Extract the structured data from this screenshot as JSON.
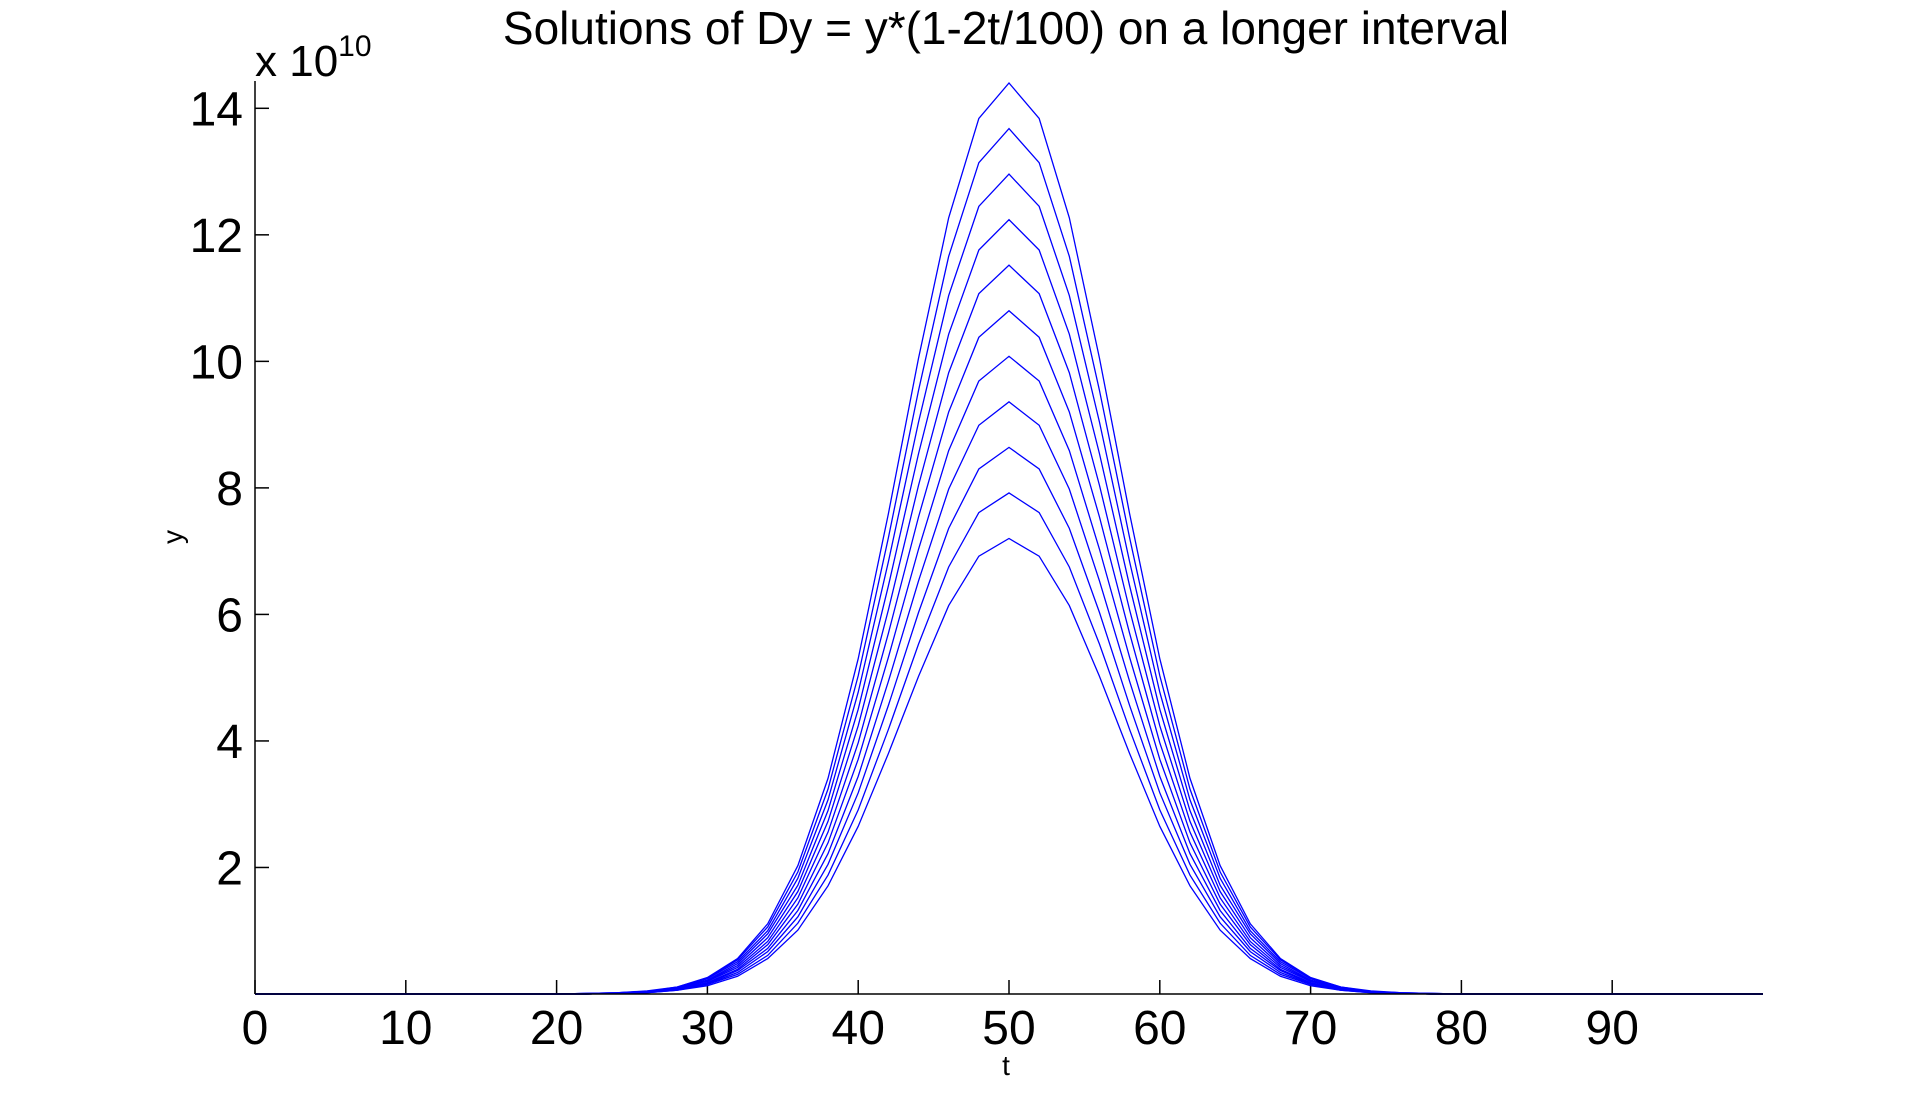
{
  "chart_data": {
    "type": "line",
    "title": "Solutions of Dy = y*(1-2t/100) on a longer interval",
    "x_label": "t",
    "y_label": "y",
    "y_multiplier": "x 10",
    "y_multiplier_exponent": "10",
    "xlim": [
      0,
      100
    ],
    "ylim": [
      0,
      14.4
    ],
    "xticks": [
      0,
      10,
      20,
      30,
      40,
      50,
      60,
      70,
      80,
      90
    ],
    "yticks": [
      2,
      4,
      6,
      8,
      10,
      12,
      14
    ],
    "grid": false,
    "x": [
      0,
      2,
      4,
      6,
      8,
      10,
      12,
      14,
      16,
      18,
      20,
      22,
      24,
      26,
      28,
      30,
      32,
      34,
      36,
      38,
      40,
      42,
      44,
      46,
      48,
      50,
      52,
      54,
      56,
      58,
      60,
      62,
      64,
      66,
      68,
      70,
      72,
      74,
      76,
      78,
      80,
      82,
      84,
      86,
      88,
      90,
      92,
      94,
      96,
      98,
      100
    ],
    "series": [
      {
        "color": "#0000ff",
        "values": [
          0,
          0,
          0,
          0,
          0,
          0,
          0,
          0,
          0,
          0,
          0,
          0,
          0.01,
          0.02,
          0.06,
          0.13,
          0.28,
          0.56,
          1.01,
          1.71,
          2.65,
          3.8,
          5.02,
          6.14,
          6.92,
          7.2,
          6.92,
          6.14,
          5.02,
          3.8,
          2.65,
          1.71,
          1.01,
          0.56,
          0.28,
          0.13,
          0.06,
          0.02,
          0.01,
          0,
          0,
          0,
          0,
          0,
          0,
          0,
          0,
          0,
          0,
          0,
          0
        ]
      },
      {
        "color": "#0000ff",
        "values": [
          0,
          0,
          0,
          0,
          0,
          0,
          0,
          0,
          0,
          0,
          0,
          0,
          0.01,
          0.02,
          0.06,
          0.15,
          0.31,
          0.61,
          1.12,
          1.88,
          2.91,
          4.18,
          5.53,
          6.75,
          7.61,
          7.92,
          7.61,
          6.75,
          5.53,
          4.18,
          2.91,
          1.88,
          1.12,
          0.61,
          0.31,
          0.15,
          0.06,
          0.02,
          0.01,
          0,
          0,
          0,
          0,
          0,
          0,
          0,
          0,
          0,
          0,
          0,
          0
        ]
      },
      {
        "color": "#0000ff",
        "values": [
          0,
          0,
          0,
          0,
          0,
          0,
          0,
          0,
          0,
          0,
          0,
          0,
          0.01,
          0.03,
          0.07,
          0.16,
          0.34,
          0.67,
          1.22,
          2.05,
          3.18,
          4.56,
          6.03,
          7.36,
          8.3,
          8.64,
          8.3,
          7.36,
          6.03,
          4.56,
          3.18,
          2.05,
          1.22,
          0.67,
          0.34,
          0.16,
          0.07,
          0.03,
          0.01,
          0,
          0,
          0,
          0,
          0,
          0,
          0,
          0,
          0,
          0,
          0,
          0
        ]
      },
      {
        "color": "#0000ff",
        "values": [
          0,
          0,
          0,
          0,
          0,
          0,
          0,
          0,
          0,
          0,
          0,
          0,
          0.01,
          0.03,
          0.07,
          0.17,
          0.37,
          0.72,
          1.32,
          2.22,
          3.44,
          4.94,
          6.53,
          7.98,
          8.99,
          9.36,
          8.99,
          7.98,
          6.53,
          4.94,
          3.44,
          2.22,
          1.32,
          0.72,
          0.37,
          0.17,
          0.07,
          0.03,
          0.01,
          0,
          0,
          0,
          0,
          0,
          0,
          0,
          0,
          0,
          0,
          0,
          0
        ]
      },
      {
        "color": "#0000ff",
        "values": [
          0,
          0,
          0,
          0,
          0,
          0,
          0,
          0,
          0,
          0,
          0,
          0,
          0.01,
          0.03,
          0.08,
          0.18,
          0.39,
          0.78,
          1.42,
          2.39,
          3.71,
          5.32,
          7.03,
          8.59,
          9.69,
          10.08,
          9.69,
          8.59,
          7.03,
          5.32,
          3.71,
          2.39,
          1.42,
          0.78,
          0.39,
          0.18,
          0.08,
          0.03,
          0.01,
          0,
          0,
          0,
          0,
          0,
          0,
          0,
          0,
          0,
          0,
          0,
          0
        ]
      },
      {
        "color": "#0000ff",
        "values": [
          0,
          0,
          0,
          0,
          0,
          0,
          0,
          0,
          0,
          0,
          0,
          0,
          0.01,
          0.03,
          0.09,
          0.2,
          0.42,
          0.83,
          1.52,
          2.56,
          3.97,
          5.7,
          7.54,
          9.2,
          10.38,
          10.8,
          10.38,
          9.2,
          7.54,
          5.7,
          3.97,
          2.56,
          1.52,
          0.83,
          0.42,
          0.2,
          0.09,
          0.03,
          0.01,
          0,
          0,
          0,
          0,
          0,
          0,
          0,
          0,
          0,
          0,
          0,
          0
        ]
      },
      {
        "color": "#0000ff",
        "values": [
          0,
          0,
          0,
          0,
          0,
          0,
          0,
          0,
          0,
          0,
          0,
          0,
          0.01,
          0.04,
          0.09,
          0.21,
          0.45,
          0.89,
          1.62,
          2.73,
          4.24,
          6.07,
          8.04,
          9.82,
          11.07,
          11.52,
          11.07,
          9.82,
          8.04,
          6.07,
          4.24,
          2.73,
          1.62,
          0.89,
          0.45,
          0.21,
          0.09,
          0.04,
          0.01,
          0,
          0,
          0,
          0,
          0,
          0,
          0,
          0,
          0,
          0,
          0,
          0
        ]
      },
      {
        "color": "#0000ff",
        "values": [
          0,
          0,
          0,
          0,
          0,
          0,
          0,
          0,
          0,
          0,
          0,
          0,
          0.01,
          0.04,
          0.1,
          0.22,
          0.48,
          0.95,
          1.72,
          2.9,
          4.5,
          6.45,
          8.54,
          10.43,
          11.76,
          12.24,
          11.76,
          10.43,
          8.54,
          6.45,
          4.5,
          2.9,
          1.72,
          0.95,
          0.48,
          0.22,
          0.1,
          0.04,
          0.01,
          0,
          0,
          0,
          0,
          0,
          0,
          0,
          0,
          0,
          0,
          0,
          0
        ]
      },
      {
        "color": "#0000ff",
        "values": [
          0,
          0,
          0,
          0,
          0,
          0,
          0,
          0,
          0,
          0,
          0,
          0.01,
          0.02,
          0.04,
          0.1,
          0.24,
          0.51,
          1.0,
          1.83,
          3.07,
          4.77,
          6.83,
          9.04,
          11.04,
          12.45,
          12.96,
          12.45,
          11.04,
          9.04,
          6.83,
          4.77,
          3.07,
          1.83,
          1.0,
          0.51,
          0.24,
          0.1,
          0.04,
          0.02,
          0.01,
          0,
          0,
          0,
          0,
          0,
          0,
          0,
          0,
          0,
          0,
          0
        ]
      },
      {
        "color": "#0000ff",
        "values": [
          0,
          0,
          0,
          0,
          0,
          0,
          0,
          0,
          0,
          0,
          0,
          0.01,
          0.02,
          0.04,
          0.11,
          0.25,
          0.54,
          1.06,
          1.93,
          3.24,
          5.03,
          7.21,
          9.54,
          11.66,
          13.14,
          13.68,
          13.14,
          11.66,
          9.54,
          7.21,
          5.03,
          3.24,
          1.93,
          1.06,
          0.54,
          0.25,
          0.11,
          0.04,
          0.02,
          0.01,
          0,
          0,
          0,
          0,
          0,
          0,
          0,
          0,
          0,
          0,
          0
        ]
      },
      {
        "color": "#0000ff",
        "values": [
          0,
          0,
          0,
          0,
          0,
          0,
          0,
          0,
          0,
          0,
          0,
          0.01,
          0.02,
          0.05,
          0.11,
          0.26,
          0.56,
          1.11,
          2.03,
          3.41,
          5.3,
          7.59,
          10.05,
          12.27,
          13.84,
          14.4,
          13.84,
          12.27,
          10.05,
          7.59,
          5.3,
          3.41,
          2.03,
          1.11,
          0.56,
          0.26,
          0.11,
          0.05,
          0.02,
          0.01,
          0,
          0,
          0,
          0,
          0,
          0,
          0,
          0,
          0,
          0,
          0
        ]
      }
    ]
  }
}
